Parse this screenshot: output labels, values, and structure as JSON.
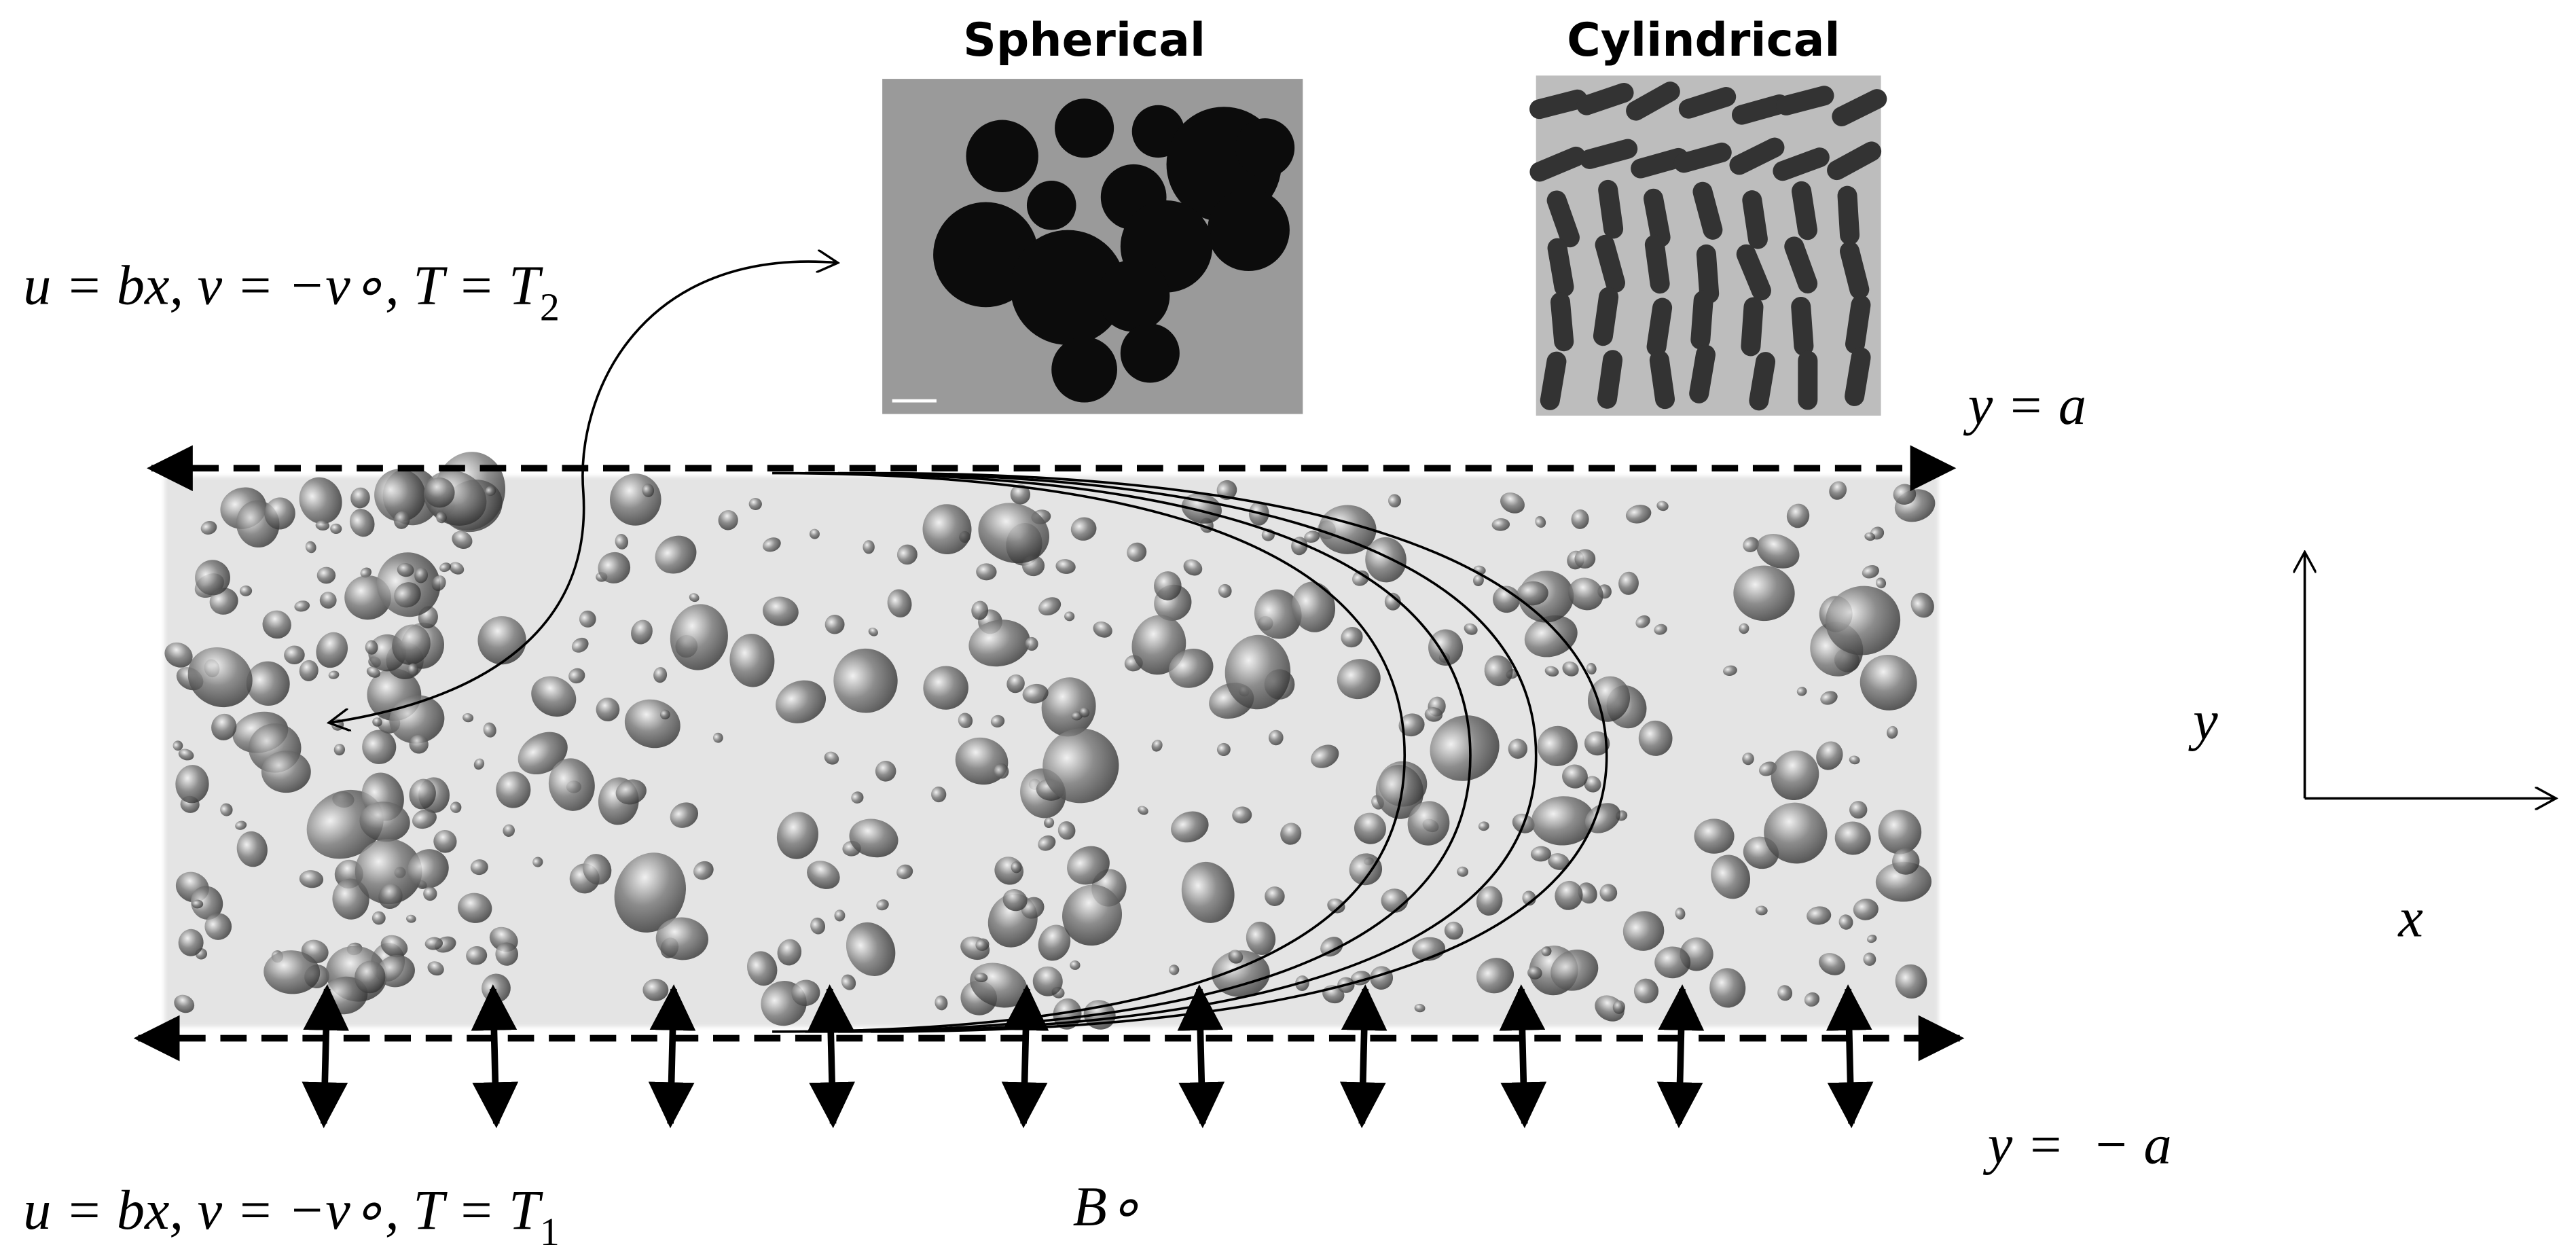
{
  "images": {
    "spherical": {
      "title": "Spherical"
    },
    "cylindrical": {
      "title": "Cylindrical"
    }
  },
  "boundaries": {
    "top": {
      "condition": {
        "main": "u = bx, v = −v∘, T = T",
        "subscript": "2"
      },
      "position": "y = a"
    },
    "bottom": {
      "condition": {
        "main": "u = bx, v = −v∘, T = T",
        "subscript": "1"
      },
      "position": "y =  − a"
    }
  },
  "magnetic_field": "B∘",
  "axes": {
    "y": "y",
    "x": "x"
  }
}
